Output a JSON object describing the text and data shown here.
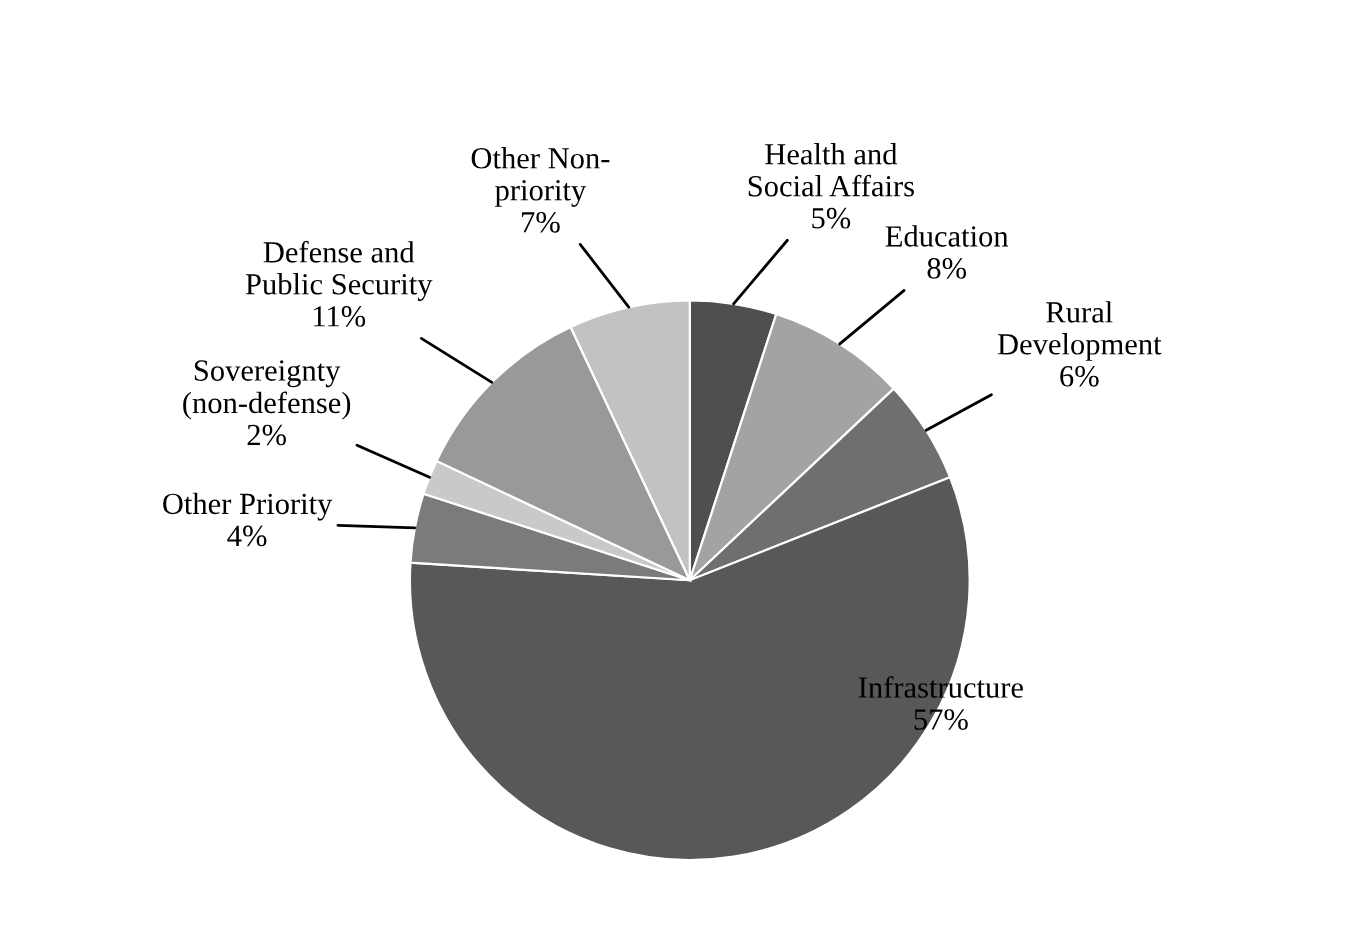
{
  "chart_data": {
    "type": "pie",
    "categories": [
      "Health and\nSocial Affairs",
      "Education",
      "Rural\nDevelopment",
      "Infrastructure",
      "Other Priority",
      "Sovereignty\n(non-defense)",
      "Defense and\nPublic Security",
      "Other Non-\npriority"
    ],
    "values": [
      5,
      8,
      6,
      57,
      4,
      2,
      11,
      7
    ],
    "colors": [
      "#4f4f4f",
      "#a3a3a3",
      "#6f6f6f",
      "#585858",
      "#7b7b7b",
      "#c9c9c9",
      "#999999",
      "#c2c2c2"
    ],
    "value_labels": [
      "5%",
      "8%",
      "6%",
      "57%",
      "4%",
      "2%",
      "11%",
      "7%"
    ],
    "legend": false
  }
}
